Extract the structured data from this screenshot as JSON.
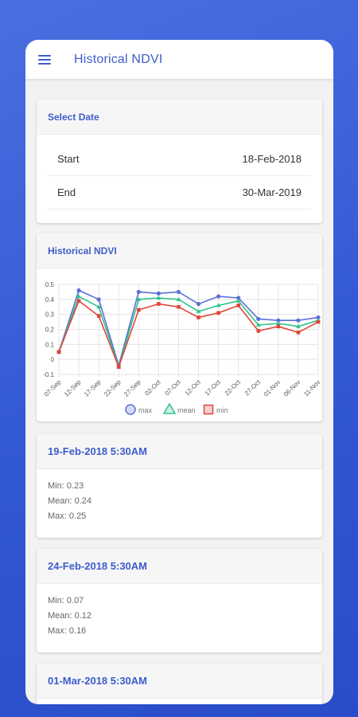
{
  "app": {
    "title": "Historical NDVI"
  },
  "select_date": {
    "title": "Select Date",
    "start_label": "Start",
    "start_value": "18-Feb-2018",
    "end_label": "End",
    "end_value": "30-Mar-2019"
  },
  "chart_card": {
    "title": "Historical NDVI"
  },
  "chart_data": {
    "type": "line",
    "title": "",
    "xlabel": "",
    "ylabel": "",
    "x": [
      "07-Sep",
      "12-Sep",
      "17-Sep",
      "22-Sep",
      "27-Sep",
      "02-Oct",
      "07-Oct",
      "12-Oct",
      "17-Oct",
      "22-Oct",
      "27-Oct",
      "01-Nov",
      "06-Nov",
      "11-Nov"
    ],
    "y_ticks": [
      "0.5",
      "0.4",
      "0.3",
      "0.2",
      "0.1",
      "0",
      "-0.1"
    ],
    "ylim": [
      -0.1,
      0.5
    ],
    "grid": true,
    "legend": "bottom",
    "series": [
      {
        "name": "max",
        "color": "#5a6fd6",
        "marker": "circle",
        "values": [
          0.05,
          0.46,
          0.4,
          -0.04,
          0.45,
          0.44,
          0.45,
          0.37,
          0.42,
          0.41,
          0.27,
          0.26,
          0.26,
          0.28
        ]
      },
      {
        "name": "mean",
        "color": "#2fc48a",
        "marker": "triangle",
        "values": [
          0.05,
          0.42,
          0.35,
          -0.05,
          0.4,
          0.41,
          0.4,
          0.32,
          0.36,
          0.39,
          0.23,
          0.24,
          0.22,
          0.26
        ]
      },
      {
        "name": "min",
        "color": "#e0453a",
        "marker": "square",
        "values": [
          0.05,
          0.39,
          0.29,
          -0.05,
          0.33,
          0.37,
          0.35,
          0.28,
          0.31,
          0.36,
          0.19,
          0.22,
          0.18,
          0.25
        ]
      }
    ]
  },
  "entries": [
    {
      "title": "19-Feb-2018 5:30AM",
      "min": "Min: 0.23",
      "mean": "Mean: 0.24",
      "max": "Max: 0.25"
    },
    {
      "title": "24-Feb-2018 5:30AM",
      "min": "Min: 0.07",
      "mean": "Mean: 0.12",
      "max": "Max: 0.16"
    },
    {
      "title": "01-Mar-2018 5:30AM"
    }
  ]
}
